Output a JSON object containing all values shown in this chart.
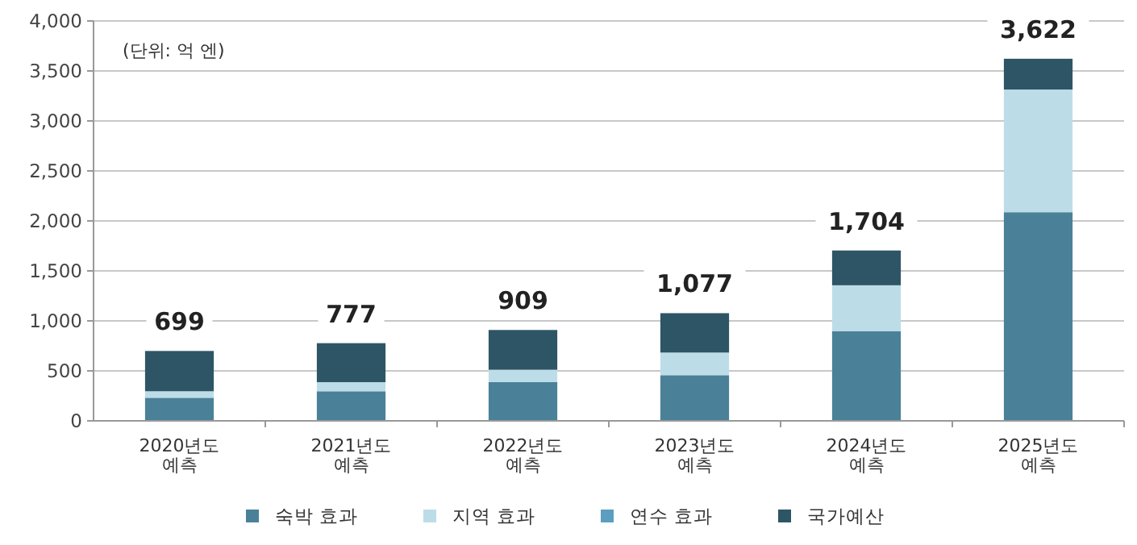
{
  "chart_data": {
    "type": "bar",
    "stacked": true,
    "categories": [
      "2020년도 예측",
      "2021년도 예측",
      "2022년도 예측",
      "2023년도 예측",
      "2024년도 예측",
      "2025년도 예측"
    ],
    "series": [
      {
        "name": "숙박 효과",
        "color": "#4a8198",
        "values": [
          231,
          296,
          387,
          457,
          898,
          2087
        ]
      },
      {
        "name": "지역 효과",
        "color": "#bcdde8",
        "values": [
          65,
          91,
          124,
          226,
          458,
          1227
        ]
      },
      {
        "name": "연수 효과",
        "color": "#5b9ec0",
        "values": [
          0,
          0,
          0,
          0,
          0,
          0
        ]
      },
      {
        "name": "국가예산",
        "color": "#2e5566",
        "values": [
          403,
          390,
          398,
          394,
          348,
          308
        ]
      }
    ],
    "totals": [
      "699",
      "777",
      "909",
      "1,077",
      "1,704",
      "3,622"
    ],
    "ylim": [
      0,
      4000
    ],
    "yticks": [
      {
        "value": 0,
        "label": "0"
      },
      {
        "value": 500,
        "label": "500"
      },
      {
        "value": 1000,
        "label": "1,000"
      },
      {
        "value": 1500,
        "label": "1,500"
      },
      {
        "value": 2000,
        "label": "2,000"
      },
      {
        "value": 2500,
        "label": "2,500"
      },
      {
        "value": 3000,
        "label": "3,000"
      },
      {
        "value": 3500,
        "label": "3,500"
      },
      {
        "value": 4000,
        "label": "4,000"
      }
    ],
    "grid": "y",
    "legend": "bottom",
    "annotations": [
      "(단위: 억 엔)"
    ]
  }
}
